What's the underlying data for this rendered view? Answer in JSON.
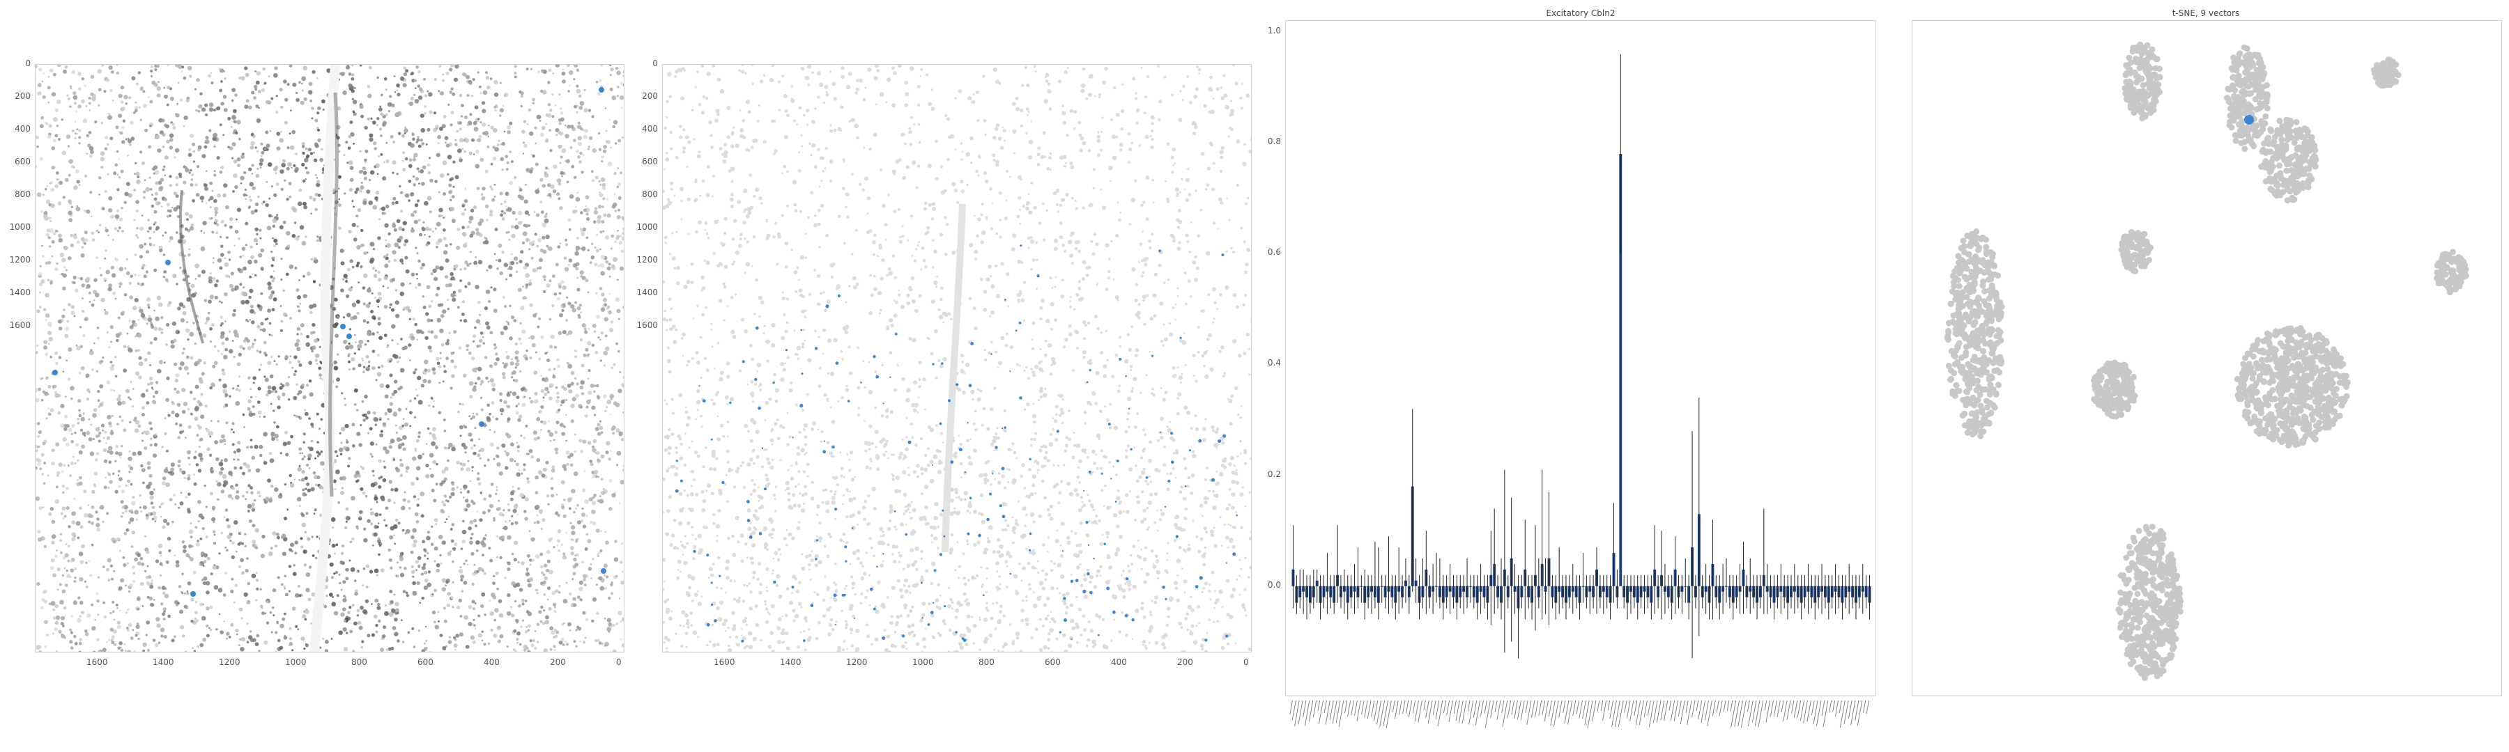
{
  "panels": {
    "tissue_image": {
      "x_ticks": [
        "1600",
        "1400",
        "1200",
        "1000",
        "800",
        "600",
        "400",
        "200",
        "0"
      ],
      "y_ticks": [
        "0",
        "200",
        "400",
        "600",
        "800",
        "1000",
        "1200",
        "1400",
        "1600"
      ]
    },
    "spot_map": {
      "x_ticks": [
        "1600",
        "1400",
        "1200",
        "1000",
        "800",
        "600",
        "400",
        "200",
        "0"
      ],
      "y_ticks": [
        "0",
        "200",
        "400",
        "600",
        "800",
        "1000",
        "1200",
        "1400",
        "1600"
      ]
    },
    "bar_chart": {
      "title": "Excitatory Cbln2",
      "y_ticks": [
        "1.0",
        "0.8",
        "0.6",
        "0.4",
        "0.2",
        "0.0"
      ]
    },
    "tsne": {
      "title": "t-SNE, 9 vectors"
    }
  },
  "colors": {
    "highlight": "#3a86d4",
    "bar_fill": "#1f3f7a",
    "cluster": "#c8c8c8",
    "tissue_dark": "#3a3a3a"
  },
  "chart_data": [
    {
      "type": "bar",
      "title": "Excitatory Cbln2",
      "ylim": [
        -0.2,
        1.02
      ],
      "y_ticks": [
        0.0,
        0.2,
        0.4,
        0.6,
        0.8,
        1.0
      ],
      "values": [
        0.03,
        -0.03,
        -0.02,
        -0.01,
        -0.02,
        -0.03,
        -0.02,
        0.01,
        -0.03,
        -0.02,
        -0.01,
        -0.02,
        -0.03,
        0.02,
        -0.02,
        -0.01,
        -0.03,
        -0.02,
        -0.01,
        -0.02,
        0.0,
        -0.03,
        -0.02,
        -0.01,
        -0.02,
        -0.03,
        0.0,
        -0.02,
        -0.01,
        -0.02,
        -0.03,
        -0.01,
        -0.02,
        0.01,
        -0.02,
        0.18,
        0.01,
        -0.03,
        -0.02,
        0.03,
        -0.02,
        -0.01,
        0.0,
        -0.02,
        -0.03,
        -0.02,
        -0.01,
        -0.02,
        -0.03,
        -0.02,
        -0.01,
        -0.02,
        0.0,
        -0.02,
        -0.03,
        -0.01,
        -0.02,
        -0.03,
        0.02,
        0.04,
        -0.02,
        -0.03,
        0.03,
        -0.02,
        0.05,
        -0.01,
        -0.04,
        -0.02,
        0.03,
        -0.02,
        -0.03,
        0.02,
        -0.02,
        0.04,
        -0.01,
        0.05,
        -0.02,
        -0.03,
        -0.01,
        -0.02,
        -0.03,
        -0.02,
        -0.01,
        -0.02,
        -0.03,
        0.0,
        -0.02,
        -0.01,
        -0.02,
        0.03,
        -0.02,
        -0.01,
        -0.02,
        -0.03,
        0.06,
        -0.02,
        0.78,
        -0.02,
        -0.03,
        -0.01,
        -0.02,
        -0.03,
        -0.02,
        -0.01,
        -0.02,
        -0.03,
        0.03,
        -0.02,
        0.02,
        -0.01,
        -0.02,
        -0.03,
        0.03,
        -0.02,
        -0.01,
        0.0,
        -0.03,
        0.07,
        -0.02,
        0.13,
        -0.02,
        -0.01,
        -0.03,
        0.04,
        -0.02,
        -0.03,
        -0.01,
        0.0,
        -0.02,
        -0.03,
        -0.02,
        -0.01,
        0.03,
        -0.02,
        -0.01,
        -0.02,
        -0.03,
        -0.02,
        0.02,
        -0.01,
        -0.02,
        -0.03,
        -0.02,
        -0.01,
        -0.02,
        -0.03,
        -0.02,
        -0.01,
        -0.02,
        -0.03,
        -0.02,
        -0.01,
        -0.02,
        -0.03,
        -0.02,
        -0.01,
        -0.02,
        -0.03,
        -0.02,
        -0.01,
        -0.02,
        -0.03,
        -0.02,
        -0.01,
        -0.02,
        -0.03,
        -0.02,
        -0.01,
        -0.02,
        -0.03
      ],
      "error_high": [
        0.11,
        0.02,
        0.03,
        0.03,
        0.02,
        0.02,
        0.03,
        0.03,
        0.02,
        0.02,
        0.06,
        0.02,
        0.02,
        0.11,
        0.02,
        0.03,
        0.02,
        0.02,
        0.04,
        0.07,
        0.02,
        0.03,
        0.02,
        0.02,
        0.08,
        0.07,
        0.02,
        0.02,
        0.09,
        0.02,
        0.02,
        0.07,
        0.02,
        0.05,
        0.02,
        0.32,
        0.05,
        0.02,
        0.05,
        0.1,
        0.02,
        0.04,
        0.06,
        0.05,
        0.02,
        0.02,
        0.04,
        0.02,
        0.02,
        0.02,
        0.02,
        0.05,
        0.02,
        0.02,
        0.02,
        0.04,
        0.02,
        0.02,
        0.1,
        0.14,
        0.02,
        0.05,
        0.21,
        0.02,
        0.16,
        0.04,
        0.02,
        0.02,
        0.12,
        0.02,
        0.02,
        0.11,
        0.05,
        0.21,
        0.05,
        0.17,
        0.02,
        0.02,
        0.07,
        0.02,
        0.02,
        0.02,
        0.04,
        0.02,
        0.02,
        0.06,
        0.02,
        0.02,
        0.02,
        0.07,
        0.02,
        0.02,
        0.02,
        0.02,
        0.15,
        0.03,
        0.96,
        0.02,
        0.02,
        0.02,
        0.02,
        0.02,
        0.02,
        0.02,
        0.02,
        0.02,
        0.11,
        0.02,
        0.1,
        0.04,
        0.02,
        0.02,
        0.09,
        0.02,
        0.02,
        0.05,
        0.02,
        0.28,
        0.02,
        0.34,
        0.02,
        0.04,
        0.02,
        0.12,
        0.02,
        0.02,
        0.04,
        0.05,
        0.02,
        0.02,
        0.02,
        0.04,
        0.08,
        0.02,
        0.05,
        0.02,
        0.02,
        0.02,
        0.14,
        0.04,
        0.02,
        0.02,
        0.02,
        0.04,
        0.02,
        0.02,
        0.02,
        0.04,
        0.02,
        0.02,
        0.02,
        0.04,
        0.02,
        0.02,
        0.02,
        0.04,
        0.02,
        0.02,
        0.02,
        0.04,
        0.02,
        0.02,
        0.02,
        0.04,
        0.02,
        0.02,
        0.02,
        0.04,
        0.02,
        0.02
      ],
      "error_low": [
        -0.04,
        -0.05,
        -0.04,
        -0.05,
        -0.06,
        -0.05,
        -0.04,
        -0.03,
        -0.06,
        -0.04,
        -0.05,
        -0.04,
        -0.05,
        -0.03,
        -0.04,
        -0.05,
        -0.06,
        -0.04,
        -0.05,
        -0.04,
        -0.03,
        -0.06,
        -0.04,
        -0.05,
        -0.04,
        -0.06,
        -0.03,
        -0.04,
        -0.05,
        -0.04,
        -0.06,
        -0.05,
        -0.04,
        -0.03,
        -0.05,
        -0.01,
        -0.03,
        -0.06,
        -0.04,
        -0.05,
        -0.04,
        -0.05,
        -0.03,
        -0.04,
        -0.06,
        -0.04,
        -0.05,
        -0.04,
        -0.06,
        -0.04,
        -0.05,
        -0.04,
        -0.03,
        -0.04,
        -0.06,
        -0.05,
        -0.04,
        -0.06,
        -0.07,
        -0.05,
        -0.04,
        -0.06,
        -0.12,
        -0.04,
        -0.1,
        -0.05,
        -0.13,
        -0.04,
        -0.06,
        -0.04,
        -0.06,
        -0.08,
        -0.04,
        -0.06,
        -0.05,
        -0.07,
        -0.04,
        -0.06,
        -0.05,
        -0.04,
        -0.06,
        -0.04,
        -0.05,
        -0.04,
        -0.06,
        -0.03,
        -0.04,
        -0.05,
        -0.04,
        -0.05,
        -0.04,
        -0.05,
        -0.04,
        -0.06,
        -0.03,
        -0.04,
        0.6,
        -0.04,
        -0.06,
        -0.05,
        -0.04,
        -0.06,
        -0.04,
        -0.05,
        -0.04,
        -0.06,
        -0.05,
        -0.04,
        -0.06,
        -0.05,
        -0.04,
        -0.06,
        -0.05,
        -0.04,
        -0.05,
        -0.03,
        -0.06,
        -0.13,
        -0.04,
        -0.09,
        -0.04,
        -0.05,
        -0.06,
        -0.06,
        -0.04,
        -0.06,
        -0.05,
        -0.03,
        -0.04,
        -0.06,
        -0.04,
        -0.05,
        -0.05,
        -0.04,
        -0.05,
        -0.04,
        -0.06,
        -0.04,
        -0.05,
        -0.05,
        -0.04,
        -0.06,
        -0.04,
        -0.05,
        -0.04,
        -0.06,
        -0.04,
        -0.05,
        -0.04,
        -0.06,
        -0.04,
        -0.05,
        -0.04,
        -0.06,
        -0.04,
        -0.05,
        -0.04,
        -0.06,
        -0.04,
        -0.05,
        -0.04,
        -0.06,
        -0.04,
        -0.05,
        -0.04,
        -0.06,
        -0.04,
        -0.05,
        -0.04,
        -0.06
      ]
    },
    {
      "type": "scatter",
      "title": "t-SNE, 9 vectors",
      "clusters_count": 9
    }
  ]
}
